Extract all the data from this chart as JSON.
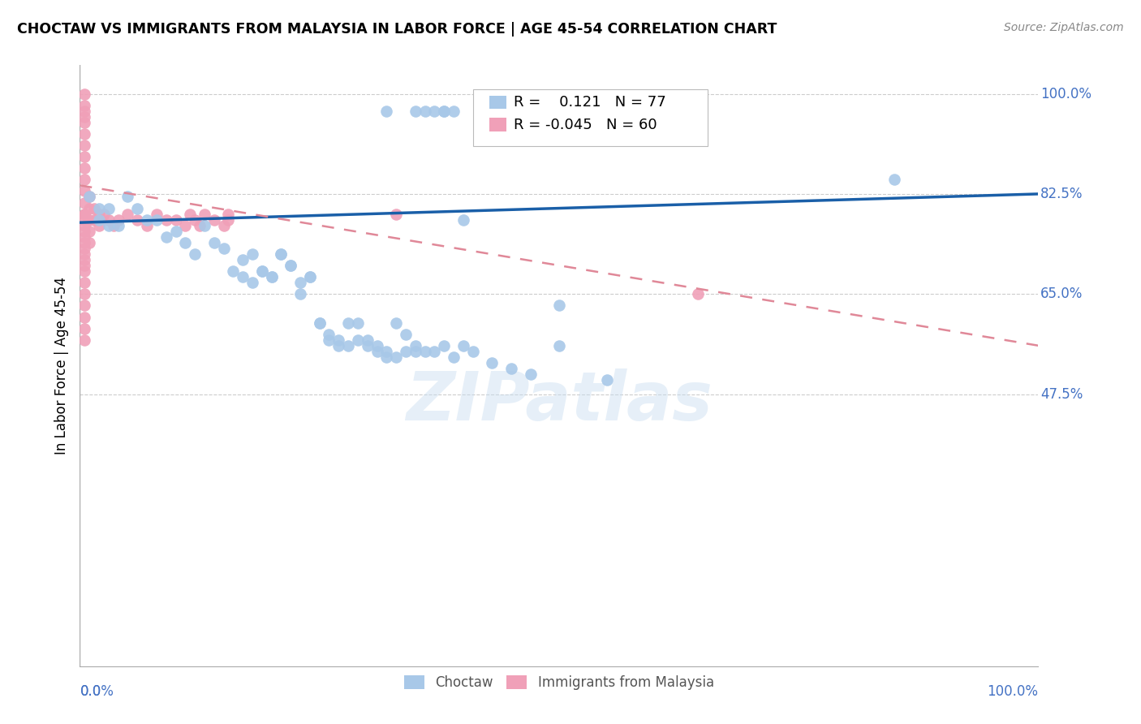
{
  "title": "CHOCTAW VS IMMIGRANTS FROM MALAYSIA IN LABOR FORCE | AGE 45-54 CORRELATION CHART",
  "source": "Source: ZipAtlas.com",
  "ylabel": "In Labor Force | Age 45-54",
  "xlim": [
    0.0,
    1.0
  ],
  "ylim": [
    0.0,
    1.05
  ],
  "yticks": [
    0.475,
    0.65,
    0.825,
    1.0
  ],
  "ytick_labels": [
    "47.5%",
    "65.0%",
    "82.5%",
    "100.0%"
  ],
  "xtick_positions": [
    0.0,
    1.0
  ],
  "xtick_labels": [
    "0.0%",
    "100.0%"
  ],
  "legend_blue_r": "0.121",
  "legend_blue_n": "77",
  "legend_pink_r": "-0.045",
  "legend_pink_n": "60",
  "blue_color": "#a8c8e8",
  "pink_color": "#f0a0b8",
  "blue_line_color": "#1a5fa8",
  "pink_line_color": "#e08898",
  "watermark": "ZIPatlas",
  "blue_line_x0": 0.0,
  "blue_line_x1": 1.0,
  "blue_line_y0": 0.775,
  "blue_line_y1": 0.825,
  "pink_line_x0": 0.0,
  "pink_line_x1": 1.0,
  "pink_line_y0": 0.84,
  "pink_line_y1": 0.56,
  "blue_points_x": [
    0.01,
    0.02,
    0.02,
    0.03,
    0.03,
    0.04,
    0.05,
    0.06,
    0.07,
    0.08,
    0.09,
    0.1,
    0.11,
    0.12,
    0.13,
    0.14,
    0.15,
    0.16,
    0.17,
    0.18,
    0.19,
    0.2,
    0.21,
    0.22,
    0.23,
    0.24,
    0.25,
    0.26,
    0.27,
    0.28,
    0.29,
    0.3,
    0.31,
    0.32,
    0.33,
    0.34,
    0.35,
    0.36,
    0.37,
    0.38,
    0.39,
    0.4,
    0.41,
    0.43,
    0.45,
    0.47,
    0.5,
    0.32,
    0.35,
    0.36,
    0.37,
    0.38,
    0.38,
    0.39,
    0.4,
    0.85,
    0.17,
    0.18,
    0.19,
    0.2,
    0.21,
    0.22,
    0.23,
    0.24,
    0.25,
    0.26,
    0.27,
    0.28,
    0.29,
    0.3,
    0.31,
    0.32,
    0.33,
    0.34,
    0.35,
    0.5,
    0.55
  ],
  "blue_points_y": [
    0.82,
    0.78,
    0.8,
    0.77,
    0.8,
    0.77,
    0.82,
    0.8,
    0.78,
    0.78,
    0.75,
    0.76,
    0.74,
    0.72,
    0.77,
    0.74,
    0.73,
    0.69,
    0.71,
    0.67,
    0.69,
    0.68,
    0.72,
    0.7,
    0.65,
    0.68,
    0.6,
    0.57,
    0.56,
    0.6,
    0.57,
    0.56,
    0.55,
    0.54,
    0.6,
    0.58,
    0.56,
    0.55,
    0.55,
    0.56,
    0.54,
    0.56,
    0.55,
    0.53,
    0.52,
    0.51,
    0.56,
    0.97,
    0.97,
    0.97,
    0.97,
    0.97,
    0.97,
    0.97,
    0.78,
    0.85,
    0.68,
    0.72,
    0.69,
    0.68,
    0.72,
    0.7,
    0.67,
    0.68,
    0.6,
    0.58,
    0.57,
    0.56,
    0.6,
    0.57,
    0.56,
    0.55,
    0.54,
    0.55,
    0.55,
    0.63,
    0.5
  ],
  "pink_points_x": [
    0.005,
    0.005,
    0.005,
    0.005,
    0.005,
    0.005,
    0.005,
    0.005,
    0.005,
    0.005,
    0.005,
    0.005,
    0.005,
    0.005,
    0.005,
    0.005,
    0.005,
    0.005,
    0.005,
    0.005,
    0.005,
    0.005,
    0.005,
    0.005,
    0.005,
    0.005,
    0.005,
    0.005,
    0.005,
    0.005,
    0.01,
    0.01,
    0.01,
    0.01,
    0.01,
    0.015,
    0.015,
    0.02,
    0.02,
    0.025,
    0.03,
    0.035,
    0.04,
    0.05,
    0.06,
    0.07,
    0.08,
    0.09,
    0.1,
    0.11,
    0.115,
    0.12,
    0.125,
    0.13,
    0.14,
    0.15,
    0.155,
    0.155,
    0.33,
    0.645
  ],
  "pink_points_y": [
    1.0,
    0.98,
    0.97,
    0.96,
    0.95,
    0.93,
    0.91,
    0.89,
    0.87,
    0.85,
    0.83,
    0.81,
    0.79,
    0.77,
    0.75,
    0.73,
    0.71,
    0.69,
    0.67,
    0.65,
    0.63,
    0.61,
    0.59,
    0.57,
    0.78,
    0.76,
    0.74,
    0.72,
    0.7,
    0.79,
    0.82,
    0.8,
    0.78,
    0.76,
    0.74,
    0.8,
    0.78,
    0.79,
    0.77,
    0.79,
    0.78,
    0.77,
    0.78,
    0.79,
    0.78,
    0.77,
    0.79,
    0.78,
    0.78,
    0.77,
    0.79,
    0.78,
    0.77,
    0.79,
    0.78,
    0.77,
    0.79,
    0.78,
    0.79,
    0.65
  ]
}
